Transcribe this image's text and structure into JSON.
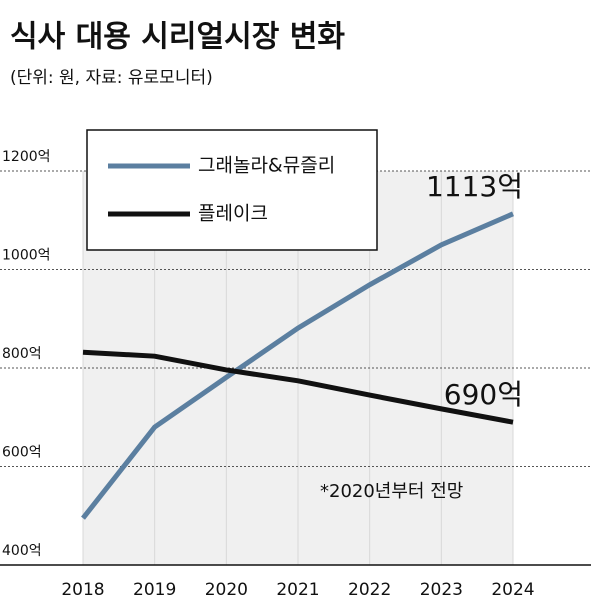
{
  "chart_data": {
    "type": "line",
    "title": "식사 대용 시리얼시장 변화",
    "subtitle": "(단위: 원, 자료: 유로모니터)",
    "annotation": "*2020년부터 전망",
    "categories": [
      "2018",
      "2019",
      "2020",
      "2021",
      "2022",
      "2023",
      "2024"
    ],
    "series": [
      {
        "name": "그래놀라&뮤즐리",
        "color": "#5b7fa0",
        "values": [
          495,
          680,
          781,
          881,
          969,
          1050,
          1113
        ],
        "value_labels": [
          null,
          null,
          null,
          null,
          null,
          null,
          "1113억"
        ]
      },
      {
        "name": "플레이크",
        "color": "#111111",
        "values": [
          832,
          824,
          796,
          774,
          745,
          717,
          690
        ],
        "value_labels": [
          null,
          null,
          null,
          null,
          null,
          null,
          "690억"
        ]
      }
    ],
    "ylim": [
      400,
      1200
    ],
    "yticks": [
      {
        "value": 400,
        "label": "400억"
      },
      {
        "value": 600,
        "label": "600억"
      },
      {
        "value": 800,
        "label": "800억"
      },
      {
        "value": 1000,
        "label": "1000억"
      },
      {
        "value": 1200,
        "label": "1200억"
      }
    ],
    "grid": true
  }
}
